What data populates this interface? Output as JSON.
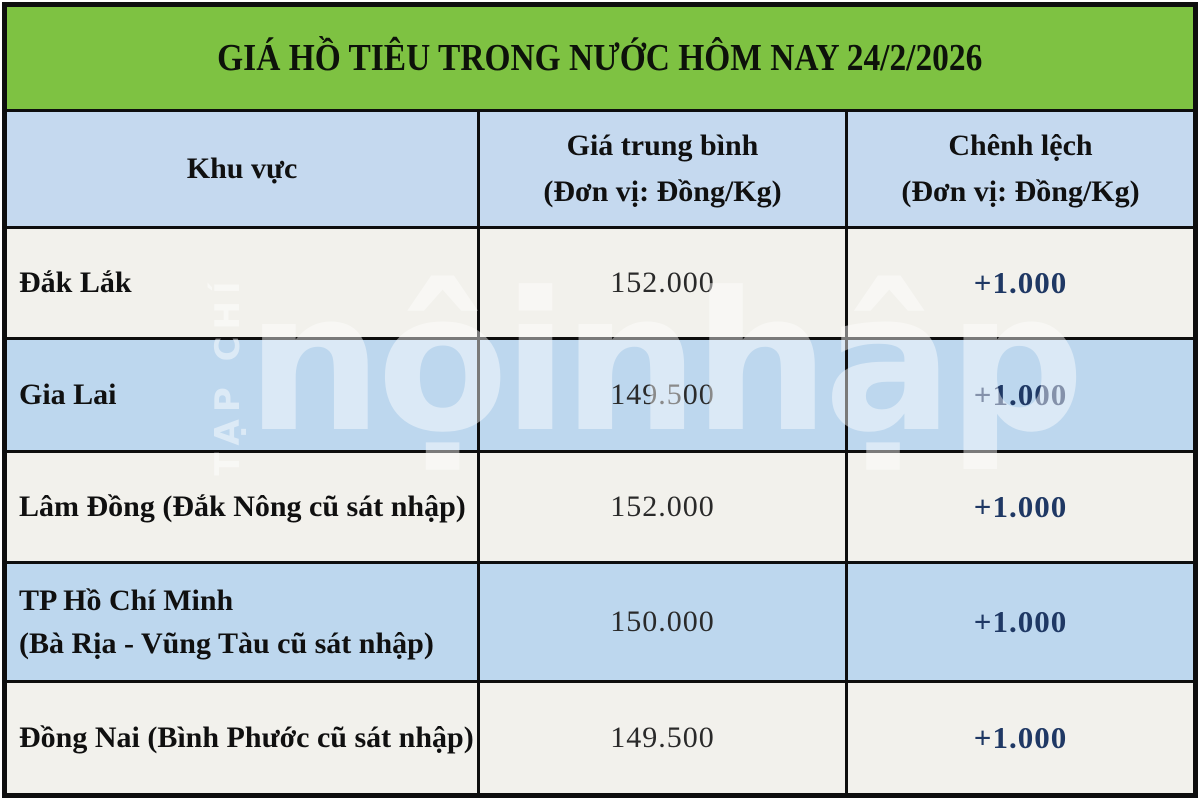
{
  "title": "GIÁ HỒ TIÊU TRONG NƯỚC HÔM NAY 24/2/2026",
  "table": {
    "headers": {
      "region": "Khu vực",
      "avg_price": "Giá trung bình\n(Đơn vị: Đồng/Kg)",
      "difference": "Chênh lệch\n(Đơn vị: Đồng/Kg)"
    },
    "rows": [
      {
        "region": "Đắk Lắk",
        "price": "152.000",
        "change": "+1.000"
      },
      {
        "region": "Gia Lai",
        "price": "149.500",
        "change": "+1.000"
      },
      {
        "region": "Lâm Đồng (Đắk Nông cũ sát nhập)",
        "price": "152.000",
        "change": "+1.000"
      },
      {
        "region": "TP Hồ Chí Minh\n(Bà Rịa - Vũng Tàu cũ sát nhập)",
        "price": "150.000",
        "change": "+1.000"
      },
      {
        "region": "Đồng Nai (Bình Phước cũ sát nhập)",
        "price": "149.500",
        "change": "+1.000"
      }
    ]
  },
  "watermark": {
    "vertical_text": "TẠP CHÍ",
    "main_text": "nộinhập"
  },
  "colors": {
    "title_band_green": "#7ec242",
    "header_blue": "#c5d9ef",
    "row_blue": "#bdd7ee",
    "row_offwhite": "#f2f1ec",
    "change_navy": "#1f3864",
    "grid_black": "#0e0e0e"
  },
  "chart_data": {
    "type": "table",
    "title": "GIÁ HỒ TIÊU TRONG NƯỚC HÔM NAY 24/2/2026",
    "columns": [
      "Khu vực",
      "Giá trung bình (Đơn vị: Đồng/Kg)",
      "Chênh lệch (Đơn vị: Đồng/Kg)"
    ],
    "rows": [
      [
        "Đắk Lắk",
        "152.000",
        "+1.000"
      ],
      [
        "Gia Lai",
        "149.500",
        "+1.000"
      ],
      [
        "Lâm Đồng (Đắk Nông cũ sát nhập)",
        "152.000",
        "+1.000"
      ],
      [
        "TP Hồ Chí Minh (Bà Rịa - Vũng Tàu cũ sát nhập)",
        "150.000",
        "+1.000"
      ],
      [
        "Đồng Nai (Bình Phước cũ sát nhập)",
        "149.500",
        "+1.000"
      ]
    ],
    "units": "Đồng/Kg",
    "prices_numeric": [
      152000,
      149500,
      152000,
      150000,
      149500
    ],
    "changes_numeric": [
      1000,
      1000,
      1000,
      1000,
      1000
    ]
  }
}
